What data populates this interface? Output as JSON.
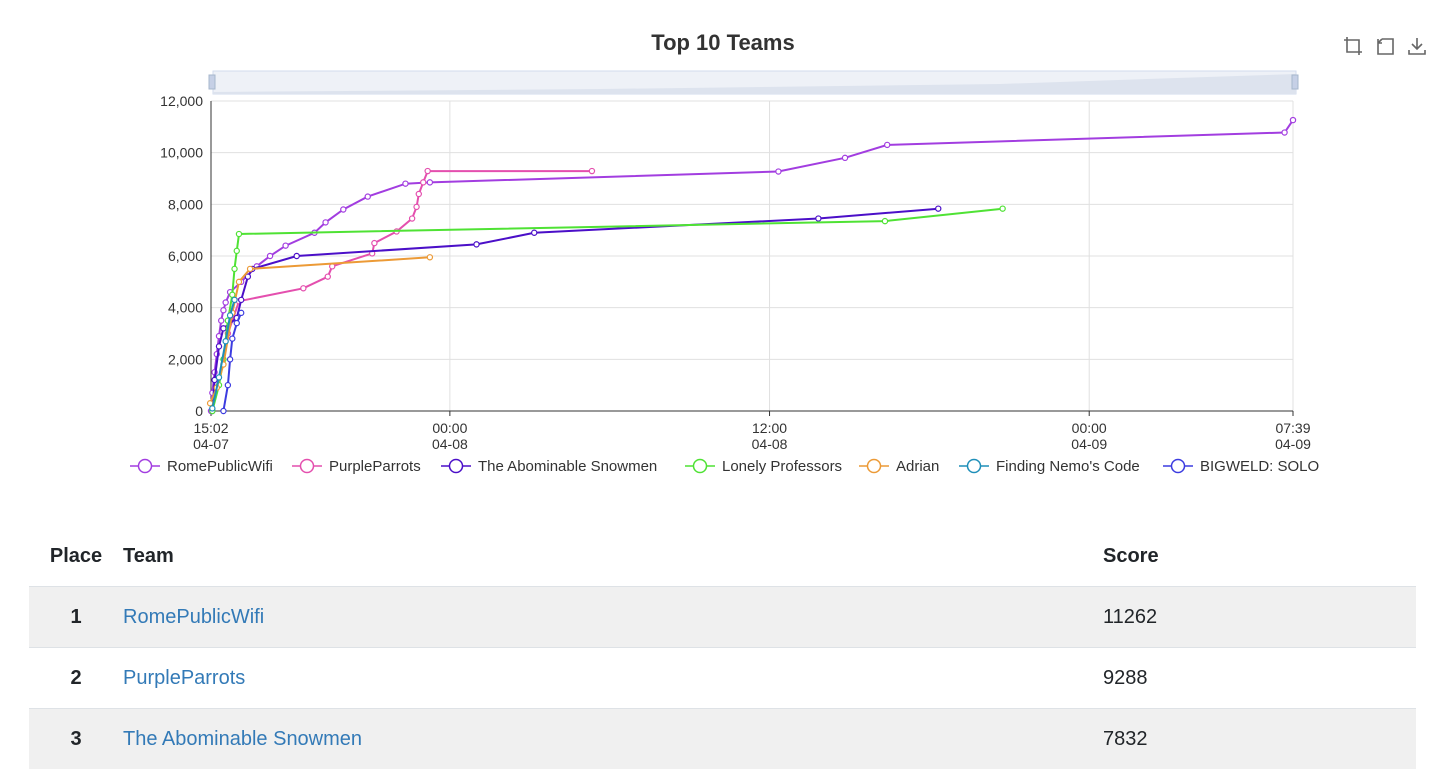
{
  "colors": {
    "rome": "#a23de0",
    "purple": "#e44fae",
    "snowmen": "#4b0fc8",
    "lonely": "#4fe234",
    "adrian": "#ec9a36",
    "nemo": "#1f8fb9",
    "bigweld": "#3c3ce0",
    "link": "#337ab7"
  },
  "toolbox": {
    "icons": [
      "zoom-icon",
      "restore-icon",
      "download-icon"
    ]
  },
  "table": {
    "headers": {
      "place": "Place",
      "team": "Team",
      "score": "Score"
    },
    "rows": [
      {
        "place": "1",
        "team": "RomePublicWifi",
        "score": "11262"
      },
      {
        "place": "2",
        "team": "PurpleParrots",
        "score": "9288"
      },
      {
        "place": "3",
        "team": "The Abominable Snowmen",
        "score": "7832"
      }
    ]
  },
  "chart_data": {
    "type": "line",
    "title": "Top 10 Teams",
    "x_axis": {
      "ticks": [
        {
          "time": "15:02",
          "date": "04-07",
          "x": "04-07 15:02"
        },
        {
          "time": "00:00",
          "date": "04-08",
          "x": "04-08 00:00"
        },
        {
          "time": "12:00",
          "date": "04-08",
          "x": "04-08 12:00"
        },
        {
          "time": "00:00",
          "date": "04-09",
          "x": "04-09 00:00"
        },
        {
          "time": "07:39",
          "date": "04-09",
          "x": "04-09 07:39"
        }
      ],
      "range": [
        "04-07 15:02",
        "04-09 07:39"
      ]
    },
    "y_axis": {
      "ticks": [
        "0",
        "2,000",
        "4,000",
        "6,000",
        "8,000",
        "10,000",
        "12,000"
      ],
      "range": [
        0,
        12000
      ]
    },
    "grid": true,
    "legend_position": "bottom",
    "dataZoom_slider": true,
    "series": [
      {
        "name": "RomePublicWifi",
        "points": [
          [
            "04-07 15:02",
            0
          ],
          [
            "04-07 15:05",
            700
          ],
          [
            "04-07 15:10",
            1500
          ],
          [
            "04-07 15:15",
            2200
          ],
          [
            "04-07 15:20",
            2900
          ],
          [
            "04-07 15:25",
            3500
          ],
          [
            "04-07 15:30",
            3900
          ],
          [
            "04-07 15:35",
            4200
          ],
          [
            "04-07 15:45",
            4600
          ],
          [
            "04-07 16:10",
            5000
          ],
          [
            "04-07 16:45",
            5600
          ],
          [
            "04-07 17:15",
            6000
          ],
          [
            "04-07 17:50",
            6400
          ],
          [
            "04-07 18:55",
            6900
          ],
          [
            "04-07 19:20",
            7300
          ],
          [
            "04-07 20:00",
            7800
          ],
          [
            "04-07 20:55",
            8300
          ],
          [
            "04-07 22:20",
            8800
          ],
          [
            "04-07 23:15",
            8850
          ],
          [
            "04-08 12:20",
            9270
          ],
          [
            "04-08 14:50",
            9800
          ],
          [
            "04-08 16:25",
            10300
          ],
          [
            "04-09 07:20",
            10780
          ],
          [
            "04-09 07:39",
            11262
          ]
        ]
      },
      {
        "name": "PurpleParrots",
        "points": [
          [
            "04-07 15:40",
            3000
          ],
          [
            "04-07 16:05",
            4250
          ],
          [
            "04-07 18:30",
            4750
          ],
          [
            "04-07 19:25",
            5200
          ],
          [
            "04-07 19:35",
            5600
          ],
          [
            "04-07 21:05",
            6100
          ],
          [
            "04-07 21:10",
            6500
          ],
          [
            "04-07 22:00",
            6950
          ],
          [
            "04-07 22:35",
            7450
          ],
          [
            "04-07 22:45",
            7900
          ],
          [
            "04-07 22:50",
            8400
          ],
          [
            "04-07 23:00",
            8850
          ],
          [
            "04-07 23:10",
            9288
          ],
          [
            "04-08 05:20",
            9288
          ]
        ]
      },
      {
        "name": "The Abominable Snowmen",
        "points": [
          [
            "04-07 15:05",
            0
          ],
          [
            "04-07 15:10",
            1200
          ],
          [
            "04-07 15:20",
            2500
          ],
          [
            "04-07 15:30",
            3200
          ],
          [
            "04-07 16:00",
            3600
          ],
          [
            "04-07 16:10",
            4300
          ],
          [
            "04-07 16:25",
            5200
          ],
          [
            "04-07 16:35",
            5500
          ],
          [
            "04-07 18:15",
            6000
          ],
          [
            "04-08 01:00",
            6450
          ],
          [
            "04-08 03:10",
            6900
          ],
          [
            "04-08 13:50",
            7450
          ],
          [
            "04-08 18:20",
            7832
          ]
        ]
      },
      {
        "name": "Lonely Professors",
        "points": [
          [
            "04-07 15:05",
            0
          ],
          [
            "04-07 15:20",
            1000
          ],
          [
            "04-07 15:30",
            2000
          ],
          [
            "04-07 15:40",
            3500
          ],
          [
            "04-07 15:50",
            4500
          ],
          [
            "04-07 15:55",
            5500
          ],
          [
            "04-07 16:00",
            6200
          ],
          [
            "04-07 16:05",
            6850
          ],
          [
            "04-08 16:20",
            7350
          ],
          [
            "04-08 20:45",
            7832
          ]
        ]
      },
      {
        "name": "Adrian",
        "points": [
          [
            "04-07 15:00",
            300
          ],
          [
            "04-07 15:15",
            900
          ],
          [
            "04-07 15:30",
            1800
          ],
          [
            "04-07 15:50",
            3800
          ],
          [
            "04-07 16:05",
            5000
          ],
          [
            "04-07 16:30",
            5500
          ],
          [
            "04-07 23:15",
            5950
          ]
        ]
      },
      {
        "name": "Finding Nemo's Code",
        "points": [
          [
            "04-07 15:05",
            100
          ],
          [
            "04-07 15:20",
            1300
          ],
          [
            "04-07 15:35",
            2700
          ],
          [
            "04-07 15:45",
            3700
          ],
          [
            "04-07 15:55",
            4300
          ]
        ]
      },
      {
        "name": "BIGWELD: SOLO",
        "points": [
          [
            "04-07 15:30",
            0
          ],
          [
            "04-07 15:40",
            1000
          ],
          [
            "04-07 15:45",
            2000
          ],
          [
            "04-07 15:50",
            2800
          ],
          [
            "04-07 16:00",
            3400
          ],
          [
            "04-07 16:10",
            3800
          ]
        ]
      }
    ]
  }
}
